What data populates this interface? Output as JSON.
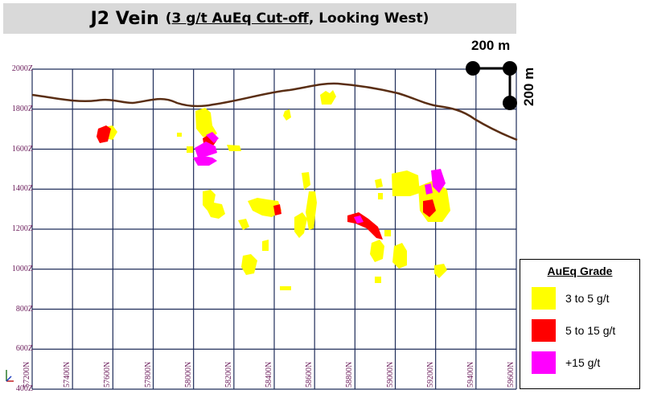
{
  "title": {
    "main": "J2 Vein",
    "open": "(",
    "cutoff": "3 g/t AuEq Cut-off",
    "rest": ", Looking West",
    "close": ")"
  },
  "scale_bar": {
    "horizontal_label": "200 m",
    "vertical_label": "200 m"
  },
  "elevation_labels": [
    "2000Z",
    "1800Z",
    "1600Z",
    "1400Z",
    "1200Z",
    "1000Z",
    "800Z",
    "600Z",
    "400Z"
  ],
  "northing_labels": [
    "57200N",
    "57400N",
    "57600N",
    "57800N",
    "58000N",
    "58200N",
    "58400N",
    "58600N",
    "58800N",
    "59000N",
    "59200N",
    "59400N",
    "59600N"
  ],
  "legend": {
    "title": "AuEq Grade",
    "items": [
      {
        "label": "3 to 5 g/t",
        "color": "#ffff00"
      },
      {
        "label": "5 to 15 g/t",
        "color": "#ff0000"
      },
      {
        "label": "+15 g/t",
        "color": "#ff00ff"
      }
    ]
  },
  "colors": {
    "grid": "#1f2d5a",
    "topography": "#5a2e14",
    "label": "#6a1b5a"
  }
}
